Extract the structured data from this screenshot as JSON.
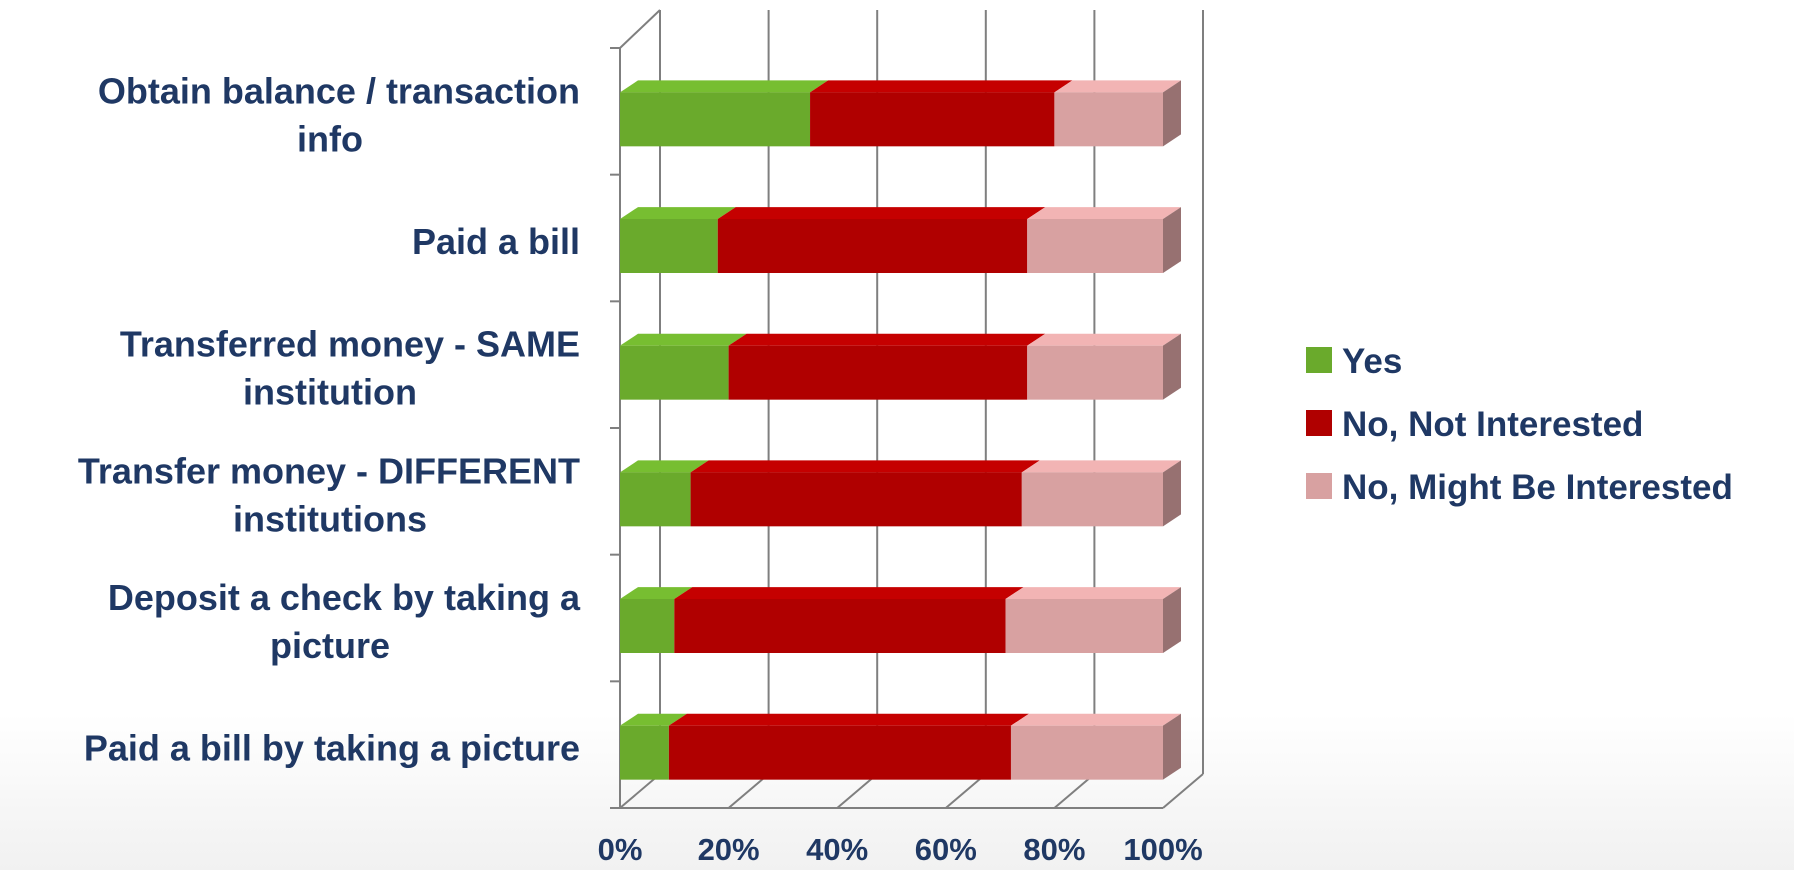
{
  "chart_data": {
    "type": "bar",
    "orientation": "horizontal",
    "stacked": "percent",
    "three_d": true,
    "categories": [
      [
        "Obtain balance / transaction",
        "info"
      ],
      [
        "Paid a bill"
      ],
      [
        "Transferred money - SAME",
        "institution"
      ],
      [
        "Transfer money - DIFFERENT",
        "institutions"
      ],
      [
        "Deposit a check by taking a",
        "picture"
      ],
      [
        "Paid a bill by taking a picture"
      ]
    ],
    "series": [
      {
        "name": "Yes",
        "color": "#6aaa2c",
        "values": [
          35,
          18,
          20,
          13,
          10,
          9
        ]
      },
      {
        "name": "No, Not Interested",
        "color": "#b00000",
        "values": [
          45,
          57,
          55,
          61,
          61,
          63
        ]
      },
      {
        "name": "No, Might Be Interested",
        "color": "#d8a1a1",
        "values": [
          20,
          25,
          25,
          26,
          29,
          28
        ]
      }
    ],
    "x_ticks": [
      "0%",
      "20%",
      "40%",
      "60%",
      "80%",
      "100%"
    ],
    "xlim": [
      0,
      100
    ],
    "grid": true,
    "legend_position": "right"
  }
}
